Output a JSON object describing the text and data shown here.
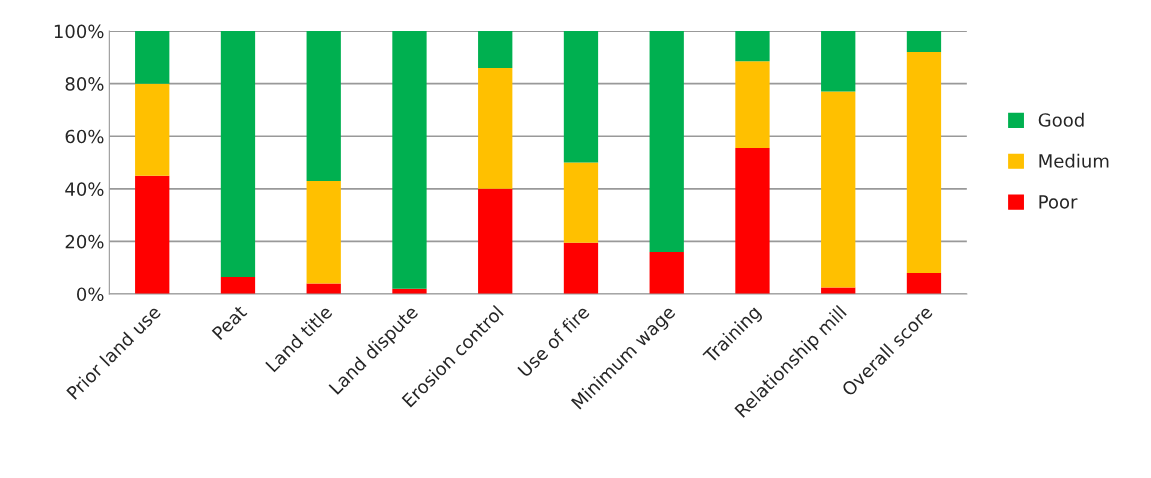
{
  "chart_data": {
    "type": "bar",
    "stacked": true,
    "grid": "y",
    "legend": "right",
    "categories": [
      "Prior land use",
      "Peat",
      "Land title",
      "Land dispute",
      "Erosion control",
      "Use of fire",
      "Minimum wage",
      "Training",
      "Relationship mill",
      "Overall score"
    ],
    "series": [
      {
        "name": "Poor",
        "color": "#ff0000",
        "values": [
          45,
          6.5,
          4,
          2,
          40,
          19.5,
          16,
          55.5,
          2.5,
          8
        ]
      },
      {
        "name": "Medium",
        "color": "#ffc000",
        "values": [
          35,
          0,
          39,
          0,
          46,
          30.5,
          0,
          33,
          74.5,
          84
        ]
      },
      {
        "name": "Good",
        "color": "#00b050",
        "values": [
          20,
          93.5,
          57,
          98,
          14,
          50,
          84,
          11.5,
          23,
          8
        ]
      }
    ],
    "ylim": [
      0,
      100
    ],
    "yticks": [
      {
        "value": 0,
        "label": "0%"
      },
      {
        "value": 20,
        "label": "20%"
      },
      {
        "value": 40,
        "label": "40%"
      },
      {
        "value": 60,
        "label": "60%"
      },
      {
        "value": 80,
        "label": "80%"
      },
      {
        "value": 100,
        "label": "100%"
      }
    ]
  }
}
